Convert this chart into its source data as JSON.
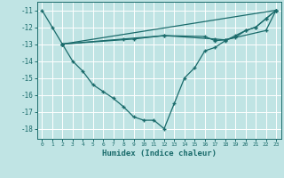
{
  "xlabel": "Humidex (Indice chaleur)",
  "ylabel": "",
  "bg_color": "#c0e4e4",
  "grid_color": "#ffffff",
  "line_color": "#1a6b6b",
  "marker": "+",
  "xlim": [
    -0.5,
    23.5
  ],
  "ylim": [
    -18.6,
    -10.5
  ],
  "yticks": [
    -18,
    -17,
    -16,
    -15,
    -14,
    -13,
    -12,
    -11
  ],
  "xticks": [
    0,
    1,
    2,
    3,
    4,
    5,
    6,
    7,
    8,
    9,
    10,
    11,
    12,
    13,
    14,
    15,
    16,
    17,
    18,
    19,
    20,
    21,
    22,
    23
  ],
  "series1": [
    [
      0,
      -11
    ],
    [
      1,
      -12
    ],
    [
      2,
      -13
    ],
    [
      23,
      -11
    ]
  ],
  "series2": [
    [
      2,
      -13
    ],
    [
      3,
      -14
    ],
    [
      4,
      -14.6
    ],
    [
      5,
      -15.4
    ],
    [
      6,
      -15.8
    ],
    [
      7,
      -16.2
    ],
    [
      8,
      -16.7
    ],
    [
      9,
      -17.3
    ],
    [
      10,
      -17.5
    ],
    [
      11,
      -17.5
    ],
    [
      12,
      -18.0
    ],
    [
      13,
      -16.5
    ],
    [
      14,
      -15.0
    ],
    [
      15,
      -14.4
    ],
    [
      16,
      -13.4
    ],
    [
      17,
      -13.2
    ],
    [
      18,
      -12.8
    ],
    [
      19,
      -12.5
    ],
    [
      20,
      -12.2
    ],
    [
      21,
      -12.0
    ],
    [
      22,
      -11.5
    ],
    [
      23,
      -11.0
    ]
  ],
  "series3": [
    [
      2,
      -13
    ],
    [
      9,
      -12.7
    ],
    [
      12,
      -12.5
    ],
    [
      16,
      -12.55
    ],
    [
      17,
      -12.8
    ],
    [
      18,
      -12.75
    ],
    [
      19,
      -12.6
    ],
    [
      20,
      -12.2
    ],
    [
      21,
      -12.0
    ],
    [
      22,
      -11.5
    ],
    [
      23,
      -11.0
    ]
  ],
  "series4": [
    [
      2,
      -13.0
    ],
    [
      8,
      -12.7
    ],
    [
      12,
      -12.5
    ],
    [
      17,
      -12.7
    ],
    [
      18,
      -12.75
    ],
    [
      22,
      -12.2
    ],
    [
      23,
      -11.0
    ]
  ]
}
